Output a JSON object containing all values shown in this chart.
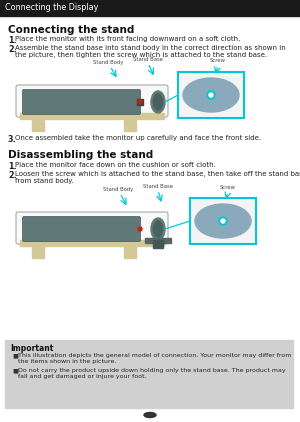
{
  "page_header": "Connecting the Display",
  "section1_title": "Connecting the stand",
  "section1_step1": "Place the monitor with its front facing downward on a soft cloth.",
  "section1_step2": "Assemble the stand base into stand body in the correct direction as shown in\nthe picture, then tighten the screw which is attached to the stand base.",
  "section1_step3": "Once assembled take the monitor up carefully and face the front side.",
  "section2_title": "Disassembling the stand",
  "section2_step1": "Place the monitor face down on the cushion or soft cloth.",
  "section2_step2": "Loosen the screw which is attached to the stand base, then take off the stand base\nfrom stand body.",
  "important_title": "Important",
  "important_bullet1": "This illustration depicts the general model of connection. Your monitor may differ from\nthe items shown in the picture.",
  "important_bullet2": "Do not carry the product upside down holding only the stand base. The product may\nfall and get damaged or injure your foot.",
  "header_bg": "#1a1a1a",
  "header_fg": "#ffffff",
  "important_bg": "#d0d0d0",
  "body_bg": "#ffffff",
  "arrow_color": "#00c8d4",
  "label_color": "#444444",
  "monitor_color": "#607878",
  "table_color": "#d4c896",
  "stand_color": "#607878",
  "disk_color": "#8aaabb"
}
